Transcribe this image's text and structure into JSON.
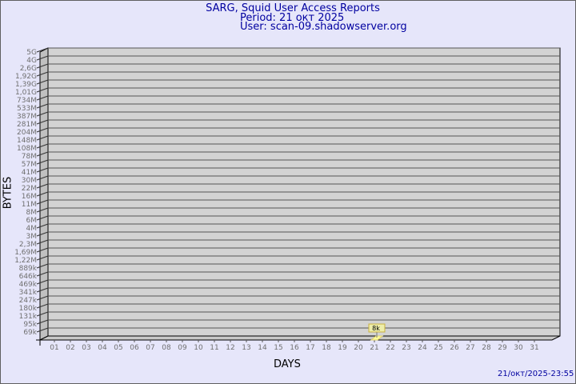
{
  "chart_data": {
    "type": "bar",
    "title": "SARG, Squid User Access Reports",
    "subtitle_period": "Period: 21 окт 2025",
    "subtitle_user": "User: scan-09.shadowserver.org",
    "xlabel": "DAYS",
    "ylabel": "BYTES",
    "y_scale": "log",
    "y_ticks": [
      "69k",
      "95k",
      "131k",
      "180k",
      "247k",
      "341k",
      "469k",
      "646k",
      "889k",
      "1,22M",
      "1,69M",
      "2,3M",
      "3M",
      "4M",
      "6M",
      "8M",
      "11M",
      "16M",
      "22M",
      "30M",
      "41M",
      "57M",
      "78M",
      "108M",
      "148M",
      "204M",
      "281M",
      "387M",
      "533M",
      "734M",
      "1,01G",
      "1,39G",
      "1,92G",
      "2,6G",
      "4G",
      "5G"
    ],
    "categories": [
      "01",
      "02",
      "03",
      "04",
      "05",
      "06",
      "07",
      "08",
      "09",
      "10",
      "11",
      "12",
      "13",
      "14",
      "15",
      "16",
      "17",
      "18",
      "19",
      "20",
      "21",
      "22",
      "23",
      "24",
      "25",
      "26",
      "27",
      "28",
      "29",
      "30",
      "31"
    ],
    "bars": [
      {
        "day": "21",
        "value_bytes": 8000,
        "label": "8k"
      }
    ],
    "grid": true,
    "colors": {
      "background": "#e6e6fa",
      "plot": "#d3d3d3",
      "bar": "#ffff99",
      "text": "#0000a0",
      "tick_text": "#707070"
    }
  },
  "footer": {
    "timestamp": "21/окт/2025-23:55"
  }
}
